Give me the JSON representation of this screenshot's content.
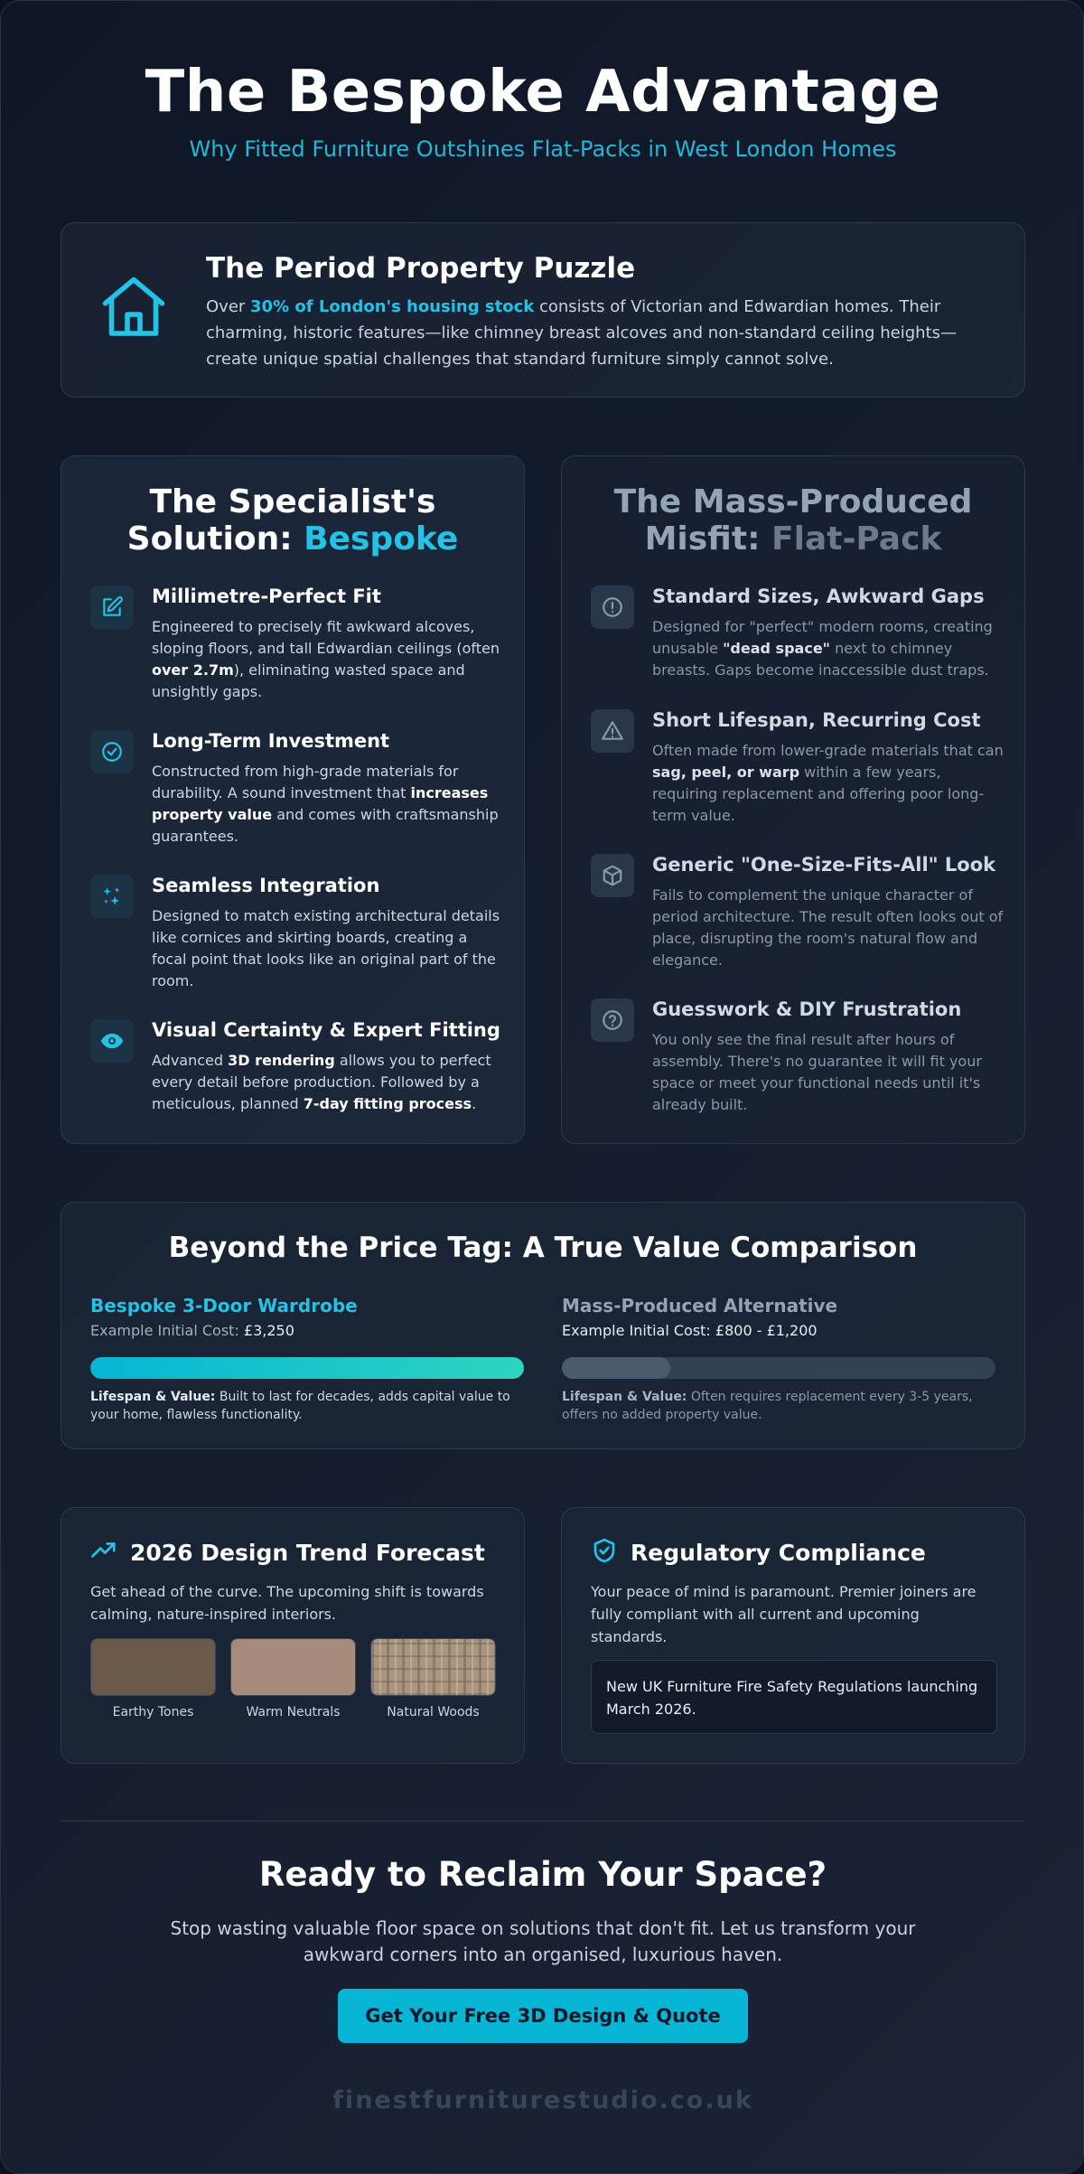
{
  "header": {
    "title": "The Bespoke Advantage",
    "subtitle": "Why Fitted Furniture Outshines Flat-Packs in West London Homes"
  },
  "puzzle": {
    "icon": "house-icon",
    "title": "The Period Property Puzzle",
    "text_before": "Over ",
    "text_highlight": "30% of London's housing stock",
    "text_after": " consists of Victorian and Edwardian homes. Their charming, historic features—like chimney breast alcoves and non-standard ceiling heights—create unique spatial challenges that standard furniture simply cannot solve."
  },
  "bespoke": {
    "title_line1": "The Specialist's",
    "title_prefix": "Solution: ",
    "title_highlight": "Bespoke",
    "items": [
      {
        "icon": "edit-icon",
        "title": "Millimetre-Perfect Fit",
        "t1": "Engineered to precisely fit awkward alcoves, sloping floors, and tall Edwardian ceilings (often ",
        "b1": "over 2.7m",
        "t2": "), eliminating wasted space and unsightly gaps.",
        "b2": "",
        "t3": ""
      },
      {
        "icon": "check-circle-icon",
        "title": "Long-Term Investment",
        "t1": "Constructed from high-grade materials for durability. A sound investment that ",
        "b1": "increases property value",
        "t2": " and comes with craftsmanship guarantees.",
        "b2": "",
        "t3": ""
      },
      {
        "icon": "sparkles-icon",
        "title": "Seamless Integration",
        "t1": "Designed to match existing architectural details like cornices and skirting boards, creating a focal point that looks like an original part of the room.",
        "b1": "",
        "t2": "",
        "b2": "",
        "t3": ""
      },
      {
        "icon": "eye-icon",
        "title": "Visual Certainty & Expert Fitting",
        "t1": "Advanced ",
        "b1": "3D rendering",
        "t2": " allows you to perfect every detail before production. Followed by a meticulous, planned ",
        "b2": "7-day fitting process",
        "t3": "."
      }
    ]
  },
  "flatpack": {
    "title_line1": "The Mass-Produced",
    "title_prefix": "Misfit: ",
    "title_highlight": "Flat-Pack",
    "items": [
      {
        "icon": "alert-circle-icon",
        "title": "Standard Sizes, Awkward Gaps",
        "t1": "Designed for \"perfect\" modern rooms, creating unusable ",
        "b1": "\"dead space\"",
        "t2": " next to chimney breasts. Gaps become inaccessible dust traps."
      },
      {
        "icon": "warning-triangle-icon",
        "title": "Short Lifespan, Recurring Cost",
        "t1": "Often made from lower-grade materials that can ",
        "b1": "sag, peel, or warp",
        "t2": " within a few years, requiring replacement and offering poor long-term value."
      },
      {
        "icon": "box-icon",
        "title": "Generic \"One-Size-Fits-All\" Look",
        "t1": "Fails to complement the unique character of period architecture. The result often looks out of place, disrupting the room's natural flow and elegance.",
        "b1": "",
        "t2": ""
      },
      {
        "icon": "help-circle-icon",
        "title": "Guesswork & DIY Frustration",
        "t1": "You only see the final result after hours of assembly. There's no guarantee it will fit your space or meet your functional needs until it's already built.",
        "b1": "",
        "t2": ""
      }
    ]
  },
  "value": {
    "title": "Beyond the Price Tag: A True Value Comparison",
    "bespoke": {
      "name": "Bespoke 3-Door Wardrobe",
      "cost_label": "Example Initial Cost: ",
      "cost": "£3,250",
      "fill": 1.0,
      "note_label": "Lifespan & Value:",
      "note": " Built to last for decades, adds capital value to your home, flawless functionality.",
      "color": "#22c3e6"
    },
    "flatpack": {
      "name": "Mass-Produced Alternative",
      "cost_label": "Example Initial Cost: ",
      "cost": "£800 - £1,200",
      "fill": 0.25,
      "note_label": "Lifespan & Value:",
      "note": " Often requires replacement every 3-5 years, offers no added property value.",
      "color": "#4b5a6e"
    }
  },
  "trend": {
    "icon": "trending-up-icon",
    "title": "2026 Design Trend Forecast",
    "desc": "Get ahead of the curve. The upcoming shift is towards calming, nature-inspired interiors.",
    "swatches": [
      {
        "label": "Earthy Tones",
        "color": "#6b5a4a"
      },
      {
        "label": "Warm Neutrals",
        "color": "#a68b7a"
      },
      {
        "label": "Natural Woods",
        "color": "#a99580"
      }
    ]
  },
  "regulatory": {
    "icon": "shield-check-icon",
    "title": "Regulatory Compliance",
    "desc": "Your peace of mind is paramount. Premier joiners are fully compliant with all current and upcoming standards.",
    "notice": "New UK Furniture Fire Safety Regulations launching March 2026."
  },
  "cta": {
    "title": "Ready to Reclaim Your Space?",
    "text": "Stop wasting valuable floor space on solutions that don't fit. Let us transform your awkward corners into an organised, luxurious haven.",
    "button": "Get Your Free 3D Design & Quote"
  },
  "footer": {
    "domain": "finestfurniturestudio.co.uk"
  },
  "colors": {
    "accent": "#22c3e6",
    "button": "#06b6d4"
  }
}
